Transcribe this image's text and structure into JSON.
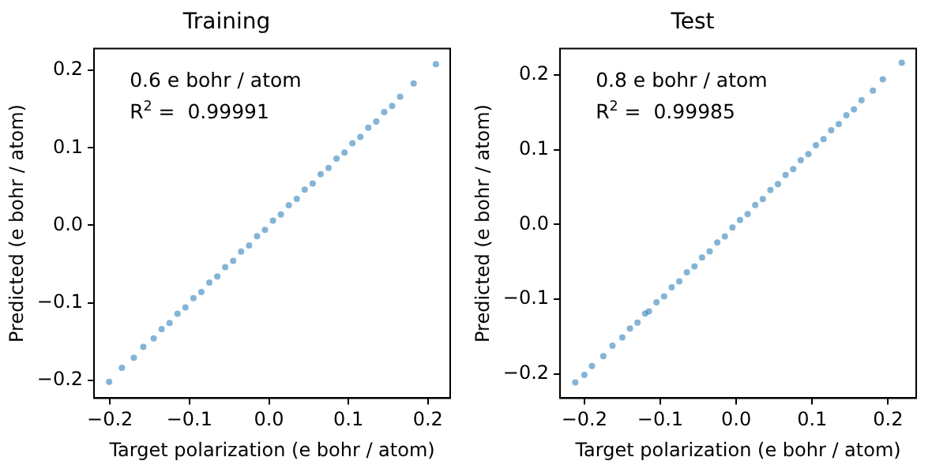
{
  "chart_data": [
    {
      "type": "scatter",
      "title": "Training",
      "xlabel": "Target polarization (e bohr / atom)",
      "ylabel": "Predicted (e bohr / atom)",
      "annotations": [
        "0.6 e bohr / atom",
        "R$^{2}$ =  0.99991"
      ],
      "marker": "circle",
      "grid": false,
      "legend": false,
      "x": [
        -0.201,
        -0.185,
        -0.17,
        -0.158,
        -0.145,
        -0.135,
        -0.125,
        -0.115,
        -0.105,
        -0.095,
        -0.085,
        -0.075,
        -0.065,
        -0.055,
        -0.045,
        -0.035,
        -0.025,
        -0.015,
        -0.005,
        0.005,
        0.015,
        0.025,
        0.035,
        0.045,
        0.055,
        0.065,
        0.075,
        0.085,
        0.095,
        0.105,
        0.115,
        0.125,
        0.135,
        0.145,
        0.155,
        0.165,
        0.182,
        0.21
      ],
      "series": [
        {
          "color": "#1f77b4",
          "values": [
            -0.202,
            -0.184,
            -0.171,
            -0.157,
            -0.146,
            -0.134,
            -0.126,
            -0.114,
            -0.106,
            -0.094,
            -0.086,
            -0.074,
            -0.066,
            -0.054,
            -0.046,
            -0.034,
            -0.026,
            -0.014,
            -0.006,
            0.006,
            0.014,
            0.026,
            0.034,
            0.046,
            0.054,
            0.066,
            0.074,
            0.086,
            0.094,
            0.106,
            0.114,
            0.126,
            0.134,
            0.146,
            0.154,
            0.166,
            0.183,
            0.208
          ]
        }
      ],
      "xlim": [
        -0.22,
        0.228
      ],
      "ylim": [
        -0.223,
        0.228
      ],
      "xticks": [
        {
          "value": -0.2,
          "label": "−0.2"
        },
        {
          "value": -0.1,
          "label": "−0.1"
        },
        {
          "value": 0,
          "label": "0.0"
        },
        {
          "value": 0.1,
          "label": "0.1"
        },
        {
          "value": 0.2,
          "label": "0.2"
        }
      ],
      "yticks": [
        {
          "value": -0.2,
          "label": "−0.2"
        },
        {
          "value": -0.1,
          "label": "−0.1"
        },
        {
          "value": 0,
          "label": "0.0"
        },
        {
          "value": 0.1,
          "label": "0.1"
        },
        {
          "value": 0.2,
          "label": "0.2"
        }
      ]
    },
    {
      "type": "scatter",
      "title": "Test",
      "xlabel": "Target polarization (e bohr / atom)",
      "ylabel": "Predicted (e bohr / atom)",
      "annotations": [
        "0.8 e bohr / atom",
        "R$^{2}$ =  0.99985"
      ],
      "marker": "circle",
      "grid": false,
      "legend": false,
      "x": [
        -0.212,
        -0.2,
        -0.19,
        -0.175,
        -0.163,
        -0.15,
        -0.14,
        -0.13,
        -0.12,
        -0.115,
        -0.105,
        -0.095,
        -0.085,
        -0.075,
        -0.065,
        -0.055,
        -0.045,
        -0.035,
        -0.025,
        -0.015,
        -0.005,
        0.005,
        0.015,
        0.025,
        0.035,
        0.045,
        0.055,
        0.065,
        0.075,
        0.085,
        0.095,
        0.105,
        0.115,
        0.125,
        0.135,
        0.145,
        0.155,
        0.165,
        0.18,
        0.193,
        0.218
      ],
      "series": [
        {
          "color": "#1f77b4",
          "values": [
            -0.211,
            -0.201,
            -0.189,
            -0.176,
            -0.162,
            -0.151,
            -0.139,
            -0.131,
            -0.119,
            -0.116,
            -0.104,
            -0.096,
            -0.084,
            -0.076,
            -0.064,
            -0.056,
            -0.044,
            -0.036,
            -0.024,
            -0.016,
            -0.004,
            0.006,
            0.014,
            0.026,
            0.034,
            0.046,
            0.054,
            0.066,
            0.074,
            0.086,
            0.094,
            0.106,
            0.114,
            0.126,
            0.134,
            0.146,
            0.154,
            0.166,
            0.179,
            0.194,
            0.216
          ]
        }
      ],
      "xlim": [
        -0.232,
        0.237
      ],
      "ylim": [
        -0.232,
        0.235
      ],
      "xticks": [
        {
          "value": -0.2,
          "label": "−0.2"
        },
        {
          "value": -0.1,
          "label": "−0.1"
        },
        {
          "value": 0,
          "label": "0.0"
        },
        {
          "value": 0.1,
          "label": "0.1"
        },
        {
          "value": 0.2,
          "label": "0.2"
        }
      ],
      "yticks": [
        {
          "value": -0.2,
          "label": "−0.2"
        },
        {
          "value": -0.1,
          "label": "−0.1"
        },
        {
          "value": 0,
          "label": "0.0"
        },
        {
          "value": 0.1,
          "label": "0.1"
        },
        {
          "value": 0.2,
          "label": "0.2"
        }
      ]
    }
  ]
}
